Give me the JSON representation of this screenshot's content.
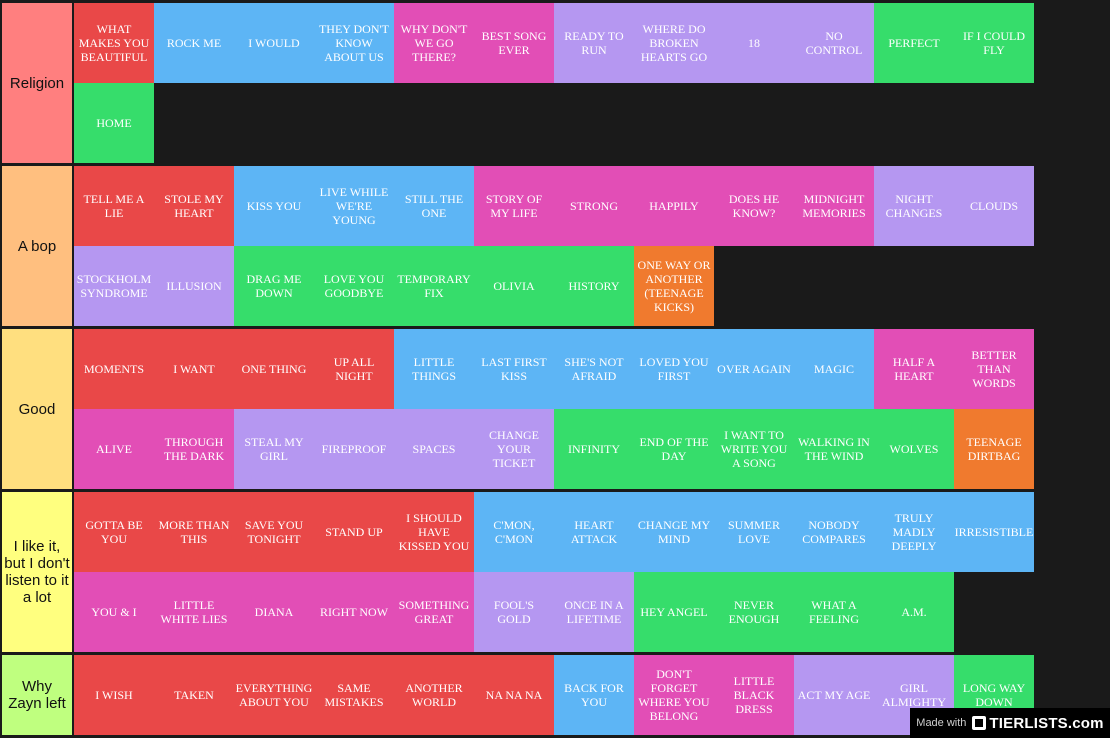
{
  "tiers": [
    {
      "label": "Religion",
      "color": "#ff7f7f",
      "rows": 2,
      "items": [
        {
          "text": "What makes you beautiful",
          "color": "#e94848"
        },
        {
          "text": "Rock Me",
          "color": "#5db5f5"
        },
        {
          "text": "I Would",
          "color": "#5db5f5"
        },
        {
          "text": "They Don't Know About Us",
          "color": "#5db5f5"
        },
        {
          "text": "Why Don't We Go There?",
          "color": "#e24eb6"
        },
        {
          "text": "Best Song Ever",
          "color": "#e24eb6"
        },
        {
          "text": "Ready to Run",
          "color": "#b597f1"
        },
        {
          "text": "Where Do Broken Hearts Go",
          "color": "#b597f1"
        },
        {
          "text": "18",
          "color": "#b597f1"
        },
        {
          "text": "No Control",
          "color": "#b597f1"
        },
        {
          "text": "Perfect",
          "color": "#36dd6b"
        },
        {
          "text": "If I Could Fly",
          "color": "#36dd6b"
        },
        {
          "text": "Home",
          "color": "#36dd6b"
        }
      ]
    },
    {
      "label": "A bop",
      "color": "#ffbf7f",
      "rows": 2,
      "items": [
        {
          "text": "Tell Me a Lie",
          "color": "#e94848"
        },
        {
          "text": "Stole My Heart",
          "color": "#e94848"
        },
        {
          "text": "Kiss You",
          "color": "#5db5f5"
        },
        {
          "text": "Live While We're Young",
          "color": "#5db5f5"
        },
        {
          "text": "Still the One",
          "color": "#5db5f5"
        },
        {
          "text": "Story of My Life",
          "color": "#e24eb6"
        },
        {
          "text": "Strong",
          "color": "#e24eb6"
        },
        {
          "text": "Happily",
          "color": "#e24eb6"
        },
        {
          "text": "Does He Know?",
          "color": "#e24eb6"
        },
        {
          "text": "Midnight Memories",
          "color": "#e24eb6"
        },
        {
          "text": "Night Changes",
          "color": "#b597f1"
        },
        {
          "text": "Clouds",
          "color": "#b597f1"
        },
        {
          "text": "Stockholm Syndrome",
          "color": "#b597f1"
        },
        {
          "text": "Illusion",
          "color": "#b597f1"
        },
        {
          "text": "Drag Me Down",
          "color": "#36dd6b"
        },
        {
          "text": "Love You Goodbye",
          "color": "#36dd6b"
        },
        {
          "text": "Temporary Fix",
          "color": "#36dd6b"
        },
        {
          "text": "Olivia",
          "color": "#36dd6b"
        },
        {
          "text": "History",
          "color": "#36dd6b"
        },
        {
          "text": "One Way or Another (Teenage Kicks)",
          "color": "#f07a2e"
        }
      ]
    },
    {
      "label": "Good",
      "color": "#ffdf7f",
      "rows": 2,
      "items": [
        {
          "text": "Moments",
          "color": "#e94848"
        },
        {
          "text": "I Want",
          "color": "#e94848"
        },
        {
          "text": "One Thing",
          "color": "#e94848"
        },
        {
          "text": "Up All Night",
          "color": "#e94848"
        },
        {
          "text": "Little Things",
          "color": "#5db5f5"
        },
        {
          "text": "Last First Kiss",
          "color": "#5db5f5"
        },
        {
          "text": "She's Not Afraid",
          "color": "#5db5f5"
        },
        {
          "text": "Loved You First",
          "color": "#5db5f5"
        },
        {
          "text": "Over Again",
          "color": "#5db5f5"
        },
        {
          "text": "Magic",
          "color": "#5db5f5"
        },
        {
          "text": "Half a Heart",
          "color": "#e24eb6"
        },
        {
          "text": "Better Than Words",
          "color": "#e24eb6"
        },
        {
          "text": "Alive",
          "color": "#e24eb6"
        },
        {
          "text": "Through the Dark",
          "color": "#e24eb6"
        },
        {
          "text": "Steal My Girl",
          "color": "#b597f1"
        },
        {
          "text": "Fireproof",
          "color": "#b597f1"
        },
        {
          "text": "Spaces",
          "color": "#b597f1"
        },
        {
          "text": "Change Your Ticket",
          "color": "#b597f1"
        },
        {
          "text": "Infinity",
          "color": "#36dd6b"
        },
        {
          "text": "End of the Day",
          "color": "#36dd6b"
        },
        {
          "text": "I Want to Write You a Song",
          "color": "#36dd6b"
        },
        {
          "text": "Walking in the Wind",
          "color": "#36dd6b"
        },
        {
          "text": "Wolves",
          "color": "#36dd6b"
        },
        {
          "text": "Teenage Dirtbag",
          "color": "#f07a2e"
        }
      ]
    },
    {
      "label": "I like it, but I don't listen to it a lot",
      "color": "#ffff7f",
      "rows": 2,
      "items": [
        {
          "text": "Gotta Be You",
          "color": "#e94848"
        },
        {
          "text": "More Than This",
          "color": "#e94848"
        },
        {
          "text": "Save You Tonight",
          "color": "#e94848"
        },
        {
          "text": "Stand Up",
          "color": "#e94848"
        },
        {
          "text": "I Should Have Kissed You",
          "color": "#e94848"
        },
        {
          "text": "C'mon, C'mon",
          "color": "#5db5f5"
        },
        {
          "text": "Heart Attack",
          "color": "#5db5f5"
        },
        {
          "text": "Change My Mind",
          "color": "#5db5f5"
        },
        {
          "text": "Summer Love",
          "color": "#5db5f5"
        },
        {
          "text": "Nobody Compares",
          "color": "#5db5f5"
        },
        {
          "text": "Truly Madly Deeply",
          "color": "#5db5f5"
        },
        {
          "text": "Irresistible",
          "color": "#5db5f5"
        },
        {
          "text": "You & I",
          "color": "#e24eb6"
        },
        {
          "text": "Little White Lies",
          "color": "#e24eb6"
        },
        {
          "text": "Diana",
          "color": "#e24eb6"
        },
        {
          "text": "Right Now",
          "color": "#e24eb6"
        },
        {
          "text": "Something Great",
          "color": "#e24eb6"
        },
        {
          "text": "Fool's Gold",
          "color": "#b597f1"
        },
        {
          "text": "Once in a Lifetime",
          "color": "#b597f1"
        },
        {
          "text": "Hey Angel",
          "color": "#36dd6b"
        },
        {
          "text": "Never Enough",
          "color": "#36dd6b"
        },
        {
          "text": "What a Feeling",
          "color": "#36dd6b"
        },
        {
          "text": "A.M.",
          "color": "#36dd6b"
        }
      ]
    },
    {
      "label": "Why Zayn left",
      "color": "#bfff7f",
      "rows": 1,
      "items": [
        {
          "text": "I Wish",
          "color": "#e94848"
        },
        {
          "text": "Taken",
          "color": "#e94848"
        },
        {
          "text": "Everything About You",
          "color": "#e94848"
        },
        {
          "text": "Same Mistakes",
          "color": "#e94848"
        },
        {
          "text": "Another World",
          "color": "#e94848"
        },
        {
          "text": "Na Na Na",
          "color": "#e94848"
        },
        {
          "text": "Back for You",
          "color": "#5db5f5"
        },
        {
          "text": "Don't Forget Where You Belong",
          "color": "#e24eb6"
        },
        {
          "text": "Little Black Dress",
          "color": "#e24eb6"
        },
        {
          "text": "Act My Age",
          "color": "#b597f1"
        },
        {
          "text": "Girl Almighty",
          "color": "#b597f1"
        },
        {
          "text": "Long Way Down",
          "color": "#36dd6b"
        }
      ]
    }
  ],
  "watermark": {
    "made_with": "Made with",
    "brand": "TIERLISTS.com"
  }
}
